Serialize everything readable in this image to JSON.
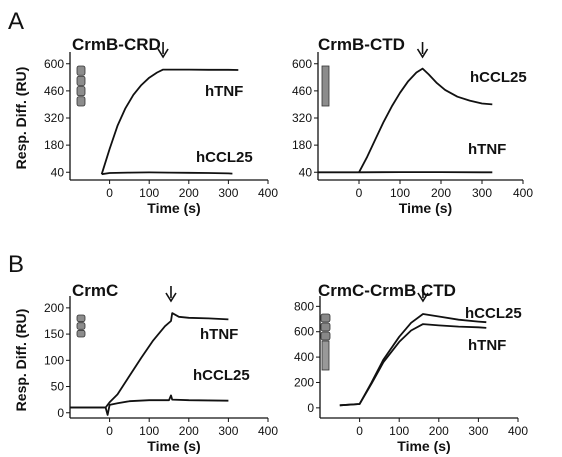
{
  "panels": {
    "A": "A",
    "B": "B"
  },
  "chart_data": [
    {
      "type": "line",
      "title": "CrmB-CRD",
      "xlabel": "Time (s)",
      "ylabel": "Resp. Diff. (RU)",
      "xticks": [
        "0",
        "100",
        "200",
        "300",
        "400"
      ],
      "yticks": [
        "40",
        "180",
        "320",
        "460",
        "600"
      ],
      "xlim": [
        -100,
        400
      ],
      "ylim": [
        0,
        640
      ],
      "marker_x": 135,
      "bar_segments": 4,
      "series": [
        {
          "name": "hTNF",
          "label_at": "right",
          "x": [
            -20,
            0,
            20,
            40,
            60,
            80,
            100,
            120,
            135,
            160,
            200,
            250,
            300,
            325
          ],
          "y": [
            30,
            160,
            280,
            370,
            440,
            490,
            528,
            555,
            570,
            570,
            570,
            569,
            569,
            568
          ]
        },
        {
          "name": "hCCL25",
          "label_at": "right",
          "x": [
            -20,
            0,
            50,
            100,
            150,
            200,
            250,
            300,
            310
          ],
          "y": [
            30,
            36,
            38,
            39,
            38,
            37,
            36,
            34,
            33
          ]
        }
      ]
    },
    {
      "type": "line",
      "title": "CrmB-CTD",
      "xlabel": "Time (s)",
      "xticks": [
        "0",
        "100",
        "200",
        "300",
        "400"
      ],
      "yticks": [
        "40",
        "180",
        "320",
        "460",
        "600"
      ],
      "xlim": [
        -100,
        400
      ],
      "ylim": [
        0,
        640
      ],
      "marker_x": 155,
      "bar_segments": 1,
      "series": [
        {
          "name": "hCCL25",
          "label_at": "right",
          "x": [
            0,
            20,
            40,
            60,
            80,
            100,
            120,
            140,
            155,
            170,
            190,
            210,
            240,
            270,
            300,
            325
          ],
          "y": [
            40,
            120,
            210,
            300,
            380,
            450,
            510,
            555,
            575,
            545,
            500,
            465,
            430,
            410,
            395,
            390
          ]
        },
        {
          "name": "hTNF",
          "label_at": "right",
          "x": [
            -100,
            0,
            100,
            200,
            300,
            325
          ],
          "y": [
            40,
            40,
            41,
            41,
            40,
            40
          ]
        }
      ]
    },
    {
      "type": "line",
      "title": "CrmC",
      "xlabel": "Time (s)",
      "ylabel": "Resp. Diff. (RU)",
      "xticks": [
        "0",
        "100",
        "200",
        "300",
        "400"
      ],
      "yticks": [
        "0",
        "50",
        "100",
        "150",
        "200"
      ],
      "xlim": [
        -100,
        400
      ],
      "ylim": [
        -10,
        215
      ],
      "marker_x": 155,
      "bar_segments": 3,
      "series": [
        {
          "name": "hTNF",
          "label_at": "right",
          "x": [
            -100,
            -10,
            0,
            20,
            50,
            80,
            110,
            140,
            155,
            158,
            175,
            200,
            250,
            300
          ],
          "y": [
            10,
            10,
            20,
            35,
            70,
            105,
            138,
            165,
            175,
            190,
            183,
            181,
            180,
            178
          ]
        },
        {
          "name": "hCCL25",
          "label_at": "right",
          "x": [
            -100,
            -10,
            -5,
            0,
            20,
            50,
            100,
            150,
            155,
            158,
            200,
            300
          ],
          "y": [
            10,
            10,
            -4,
            15,
            18,
            22,
            24,
            24,
            33,
            25,
            24,
            23
          ]
        }
      ]
    },
    {
      "type": "line",
      "title": "CrmC-CrmB CTD",
      "xlabel": "Time (s)",
      "xticks": [
        "0",
        "100",
        "200",
        "300",
        "400"
      ],
      "yticks": [
        "0",
        "200",
        "400",
        "600",
        "800"
      ],
      "xlim": [
        -100,
        400
      ],
      "ylim": [
        -80,
        850
      ],
      "marker_x": 160,
      "bar_segments": 1,
      "bar_segments_top": 3,
      "series": [
        {
          "name": "hCCL25",
          "label_at": "right",
          "x": [
            -50,
            0,
            30,
            60,
            100,
            130,
            160,
            200,
            250,
            300,
            320
          ],
          "y": [
            20,
            30,
            200,
            380,
            560,
            670,
            740,
            720,
            695,
            680,
            675
          ]
        },
        {
          "name": "hTNF",
          "label_at": "right",
          "x": [
            -50,
            0,
            30,
            60,
            100,
            130,
            160,
            200,
            250,
            300,
            320
          ],
          "y": [
            20,
            30,
            190,
            360,
            520,
            610,
            660,
            650,
            640,
            635,
            630
          ]
        }
      ]
    }
  ]
}
